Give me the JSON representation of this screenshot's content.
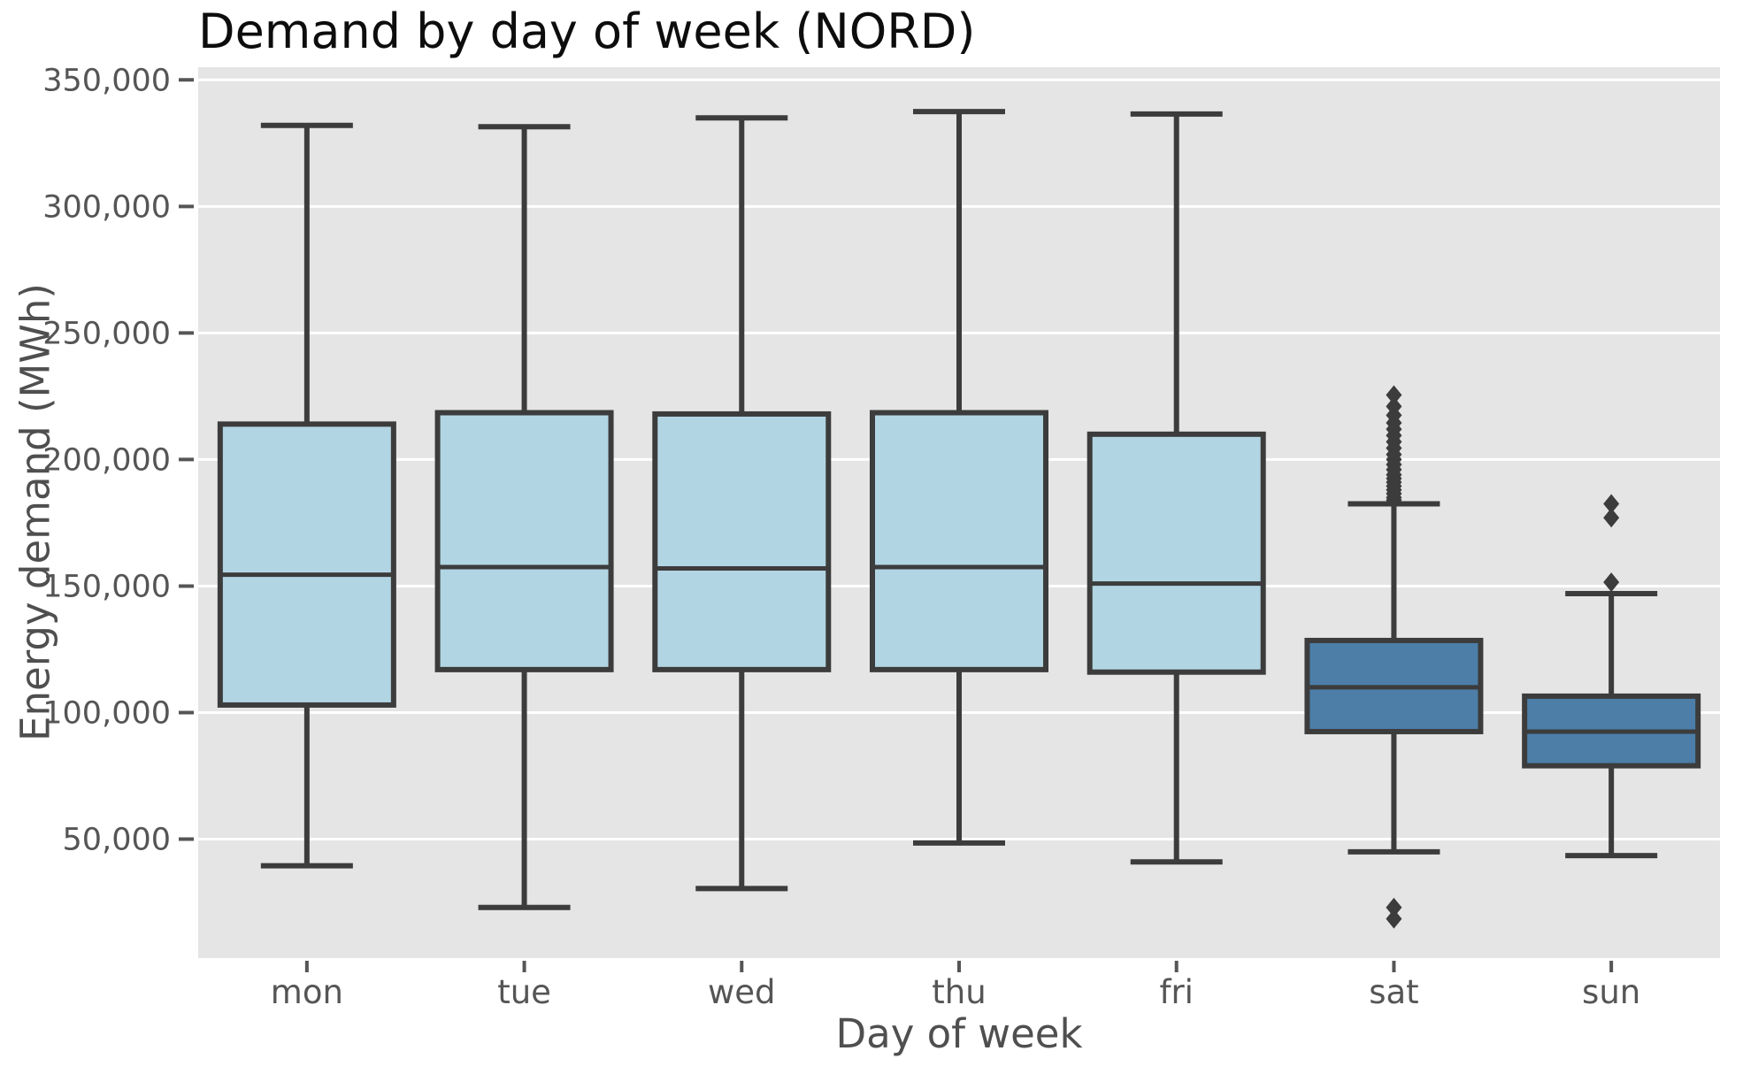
{
  "chart_data": {
    "type": "box",
    "title": "Demand by day of week (NORD)",
    "xlabel": "Day of week",
    "ylabel": "Energy demand (MWh)",
    "categories": [
      "mon",
      "tue",
      "wed",
      "thu",
      "fri",
      "sat",
      "sun"
    ],
    "ylim": [
      3000,
      355000
    ],
    "yticks": {
      "values": [
        350000,
        300000,
        250000,
        200000,
        150000,
        100000,
        50000
      ],
      "labels": [
        "350,000",
        "300,000",
        "250,000",
        "200,000",
        "150,000",
        "100,000",
        "50,000"
      ]
    },
    "grid": true,
    "legend": false,
    "boxes": [
      {
        "label": "mon",
        "group": "weekday",
        "whislo": 39500,
        "q1": 103000,
        "med": 154500,
        "q3": 214000,
        "whishi": 332000,
        "fliers": []
      },
      {
        "label": "tue",
        "group": "weekday",
        "whislo": 23000,
        "q1": 117000,
        "med": 157500,
        "q3": 218500,
        "whishi": 331500,
        "fliers": []
      },
      {
        "label": "wed",
        "group": "weekday",
        "whislo": 30500,
        "q1": 117000,
        "med": 157000,
        "q3": 218000,
        "whishi": 335000,
        "fliers": []
      },
      {
        "label": "thu",
        "group": "weekday",
        "whislo": 48500,
        "q1": 117000,
        "med": 157500,
        "q3": 218500,
        "whishi": 337500,
        "fliers": []
      },
      {
        "label": "fri",
        "group": "weekday",
        "whislo": 41000,
        "q1": 116000,
        "med": 151000,
        "q3": 210000,
        "whishi": 336500,
        "fliers": []
      },
      {
        "label": "sat",
        "group": "weekend",
        "whislo": 45000,
        "q1": 92500,
        "med": 110000,
        "q3": 128500,
        "whishi": 182500,
        "fliers": [
          225500,
          221000,
          217500,
          214500,
          212000,
          209500,
          207000,
          204500,
          202000,
          200000,
          198000,
          196000,
          194000,
          192500,
          191000,
          189500,
          188000,
          186500,
          185000,
          184000,
          23000,
          18500
        ]
      },
      {
        "label": "sun",
        "group": "weekend",
        "whislo": 43500,
        "q1": 79000,
        "med": 92500,
        "q3": 106500,
        "whishi": 147000,
        "fliers": [
          182500,
          177000,
          151500
        ]
      }
    ],
    "colors": {
      "weekday_fill": "#B2D5E3",
      "weekend_fill": "#4C7EA8",
      "line": "#3C3C3C",
      "plot_bg": "#E5E5E5",
      "grid": "#FFFFFF",
      "tick_text": "#555555",
      "title_text": "#0d0d0d",
      "figure_bg": "#FFFFFF"
    }
  }
}
